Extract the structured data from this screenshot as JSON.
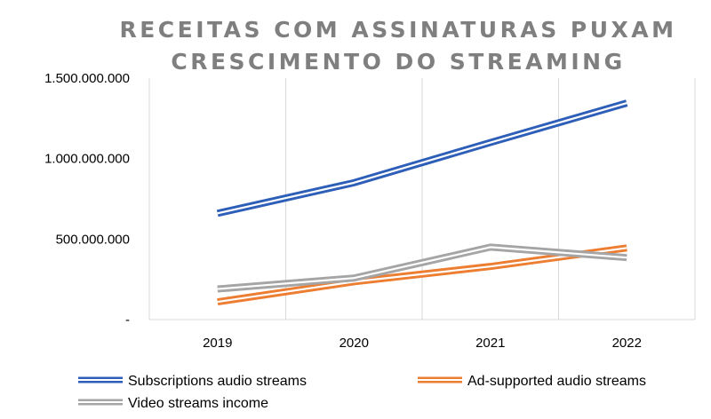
{
  "chart_data": {
    "type": "line",
    "title_lines": [
      "RECEITAS COM ASSINATURAS PUXAM",
      "CRESCIMENTO DO STREAMING"
    ],
    "xlabel": "",
    "ylabel": "",
    "categories": [
      "2019",
      "2020",
      "2021",
      "2022"
    ],
    "ylim": [
      0,
      1500000000
    ],
    "yticks": [
      {
        "value": 0,
        "label": "-"
      },
      {
        "value": 500000000,
        "label": "500.000.000"
      },
      {
        "value": 1000000000,
        "label": "1.000.000.000"
      },
      {
        "value": 1500000000,
        "label": "1.500.000.000"
      }
    ],
    "grid": "vertical",
    "legend_position": "bottom",
    "series": [
      {
        "name": "Subscriptions audio streams",
        "color": "#2e5fb8",
        "values": [
          660000000,
          850000000,
          1100000000,
          1345000000
        ]
      },
      {
        "name": "Ad-supported audio streams",
        "color": "#ed7d31",
        "values": [
          110000000,
          235000000,
          330000000,
          445000000
        ]
      },
      {
        "name": "Video streams income",
        "color": "#a5a5a5",
        "values": [
          190000000,
          258000000,
          450000000,
          385000000
        ]
      }
    ]
  }
}
